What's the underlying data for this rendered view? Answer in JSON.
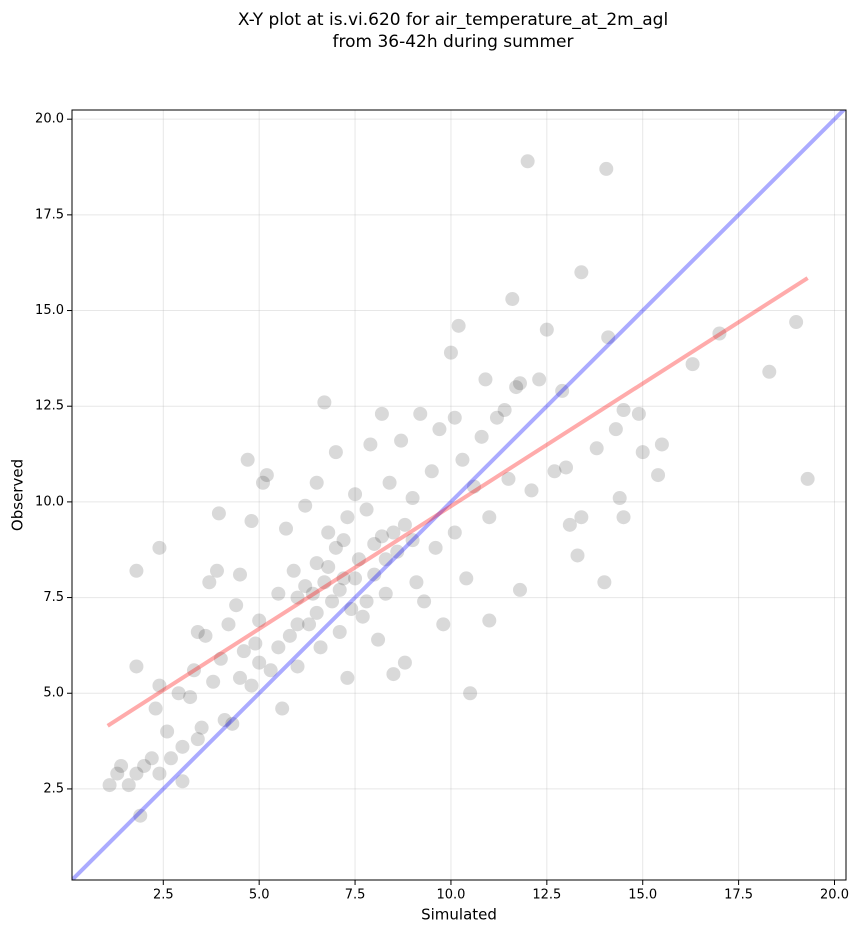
{
  "chart_data": {
    "type": "scatter",
    "title": "X-Y plot at is.vi.620 for air_temperature_at_2m_agl",
    "subtitle": "from 36-42h during summer",
    "x_label": "Simulated",
    "y_label": "Observed",
    "xlim": [
      0.12,
      20.3
    ],
    "ylim": [
      0.12,
      20.24
    ],
    "xticks": [
      2.5,
      {
        "value": 5,
        "label": "5.0"
      },
      7.5,
      {
        "value": 10,
        "label": "10.0"
      },
      12.5,
      {
        "value": 15,
        "label": "15.0"
      },
      17.5,
      {
        "value": 20,
        "label": "20.0"
      }
    ],
    "yticks": [
      2.5,
      {
        "value": 5,
        "label": "5.0"
      },
      7.5,
      {
        "value": 10,
        "label": "10.0"
      },
      12.5,
      {
        "value": 15,
        "label": "15.0"
      },
      17.5,
      {
        "value": 20,
        "label": "20.0"
      }
    ],
    "grid": true,
    "color": "#000000",
    "alpha": 0.15,
    "x": [
      1.1,
      1.3,
      1.4,
      1.6,
      1.8,
      1.8,
      1.8,
      1.9,
      2.0,
      2.2,
      2.3,
      2.4,
      2.4,
      2.4,
      2.6,
      2.7,
      2.9,
      3.0,
      3.0,
      3.2,
      3.3,
      3.4,
      3.5,
      3.4,
      3.6,
      3.7,
      3.8,
      3.9,
      3.95,
      4.0,
      4.1,
      4.2,
      4.3,
      4.4,
      4.5,
      4.5,
      4.6,
      4.7,
      4.8,
      4.8,
      5.0,
      5.1,
      5.2,
      5.3,
      5.5,
      5.6,
      5.7,
      5.8,
      5.9,
      6.0,
      6.0,
      6.2,
      6.3,
      6.4,
      6.5,
      6.5,
      6.6,
      6.7,
      6.7,
      6.8,
      6.9,
      7.0,
      7.0,
      7.1,
      7.2,
      7.3,
      7.3,
      7.4,
      7.5,
      7.6,
      7.7,
      7.8,
      7.9,
      8.0,
      8.1,
      8.2,
      8.2,
      8.3,
      8.4,
      8.5,
      8.6,
      8.7,
      8.8,
      8.8,
      9.0,
      9.1,
      9.2,
      9.3,
      9.5,
      9.6,
      9.7,
      9.8,
      10.0,
      10.1,
      10.1,
      10.2,
      10.3,
      10.4,
      10.5,
      10.6,
      10.8,
      10.9,
      11.0,
      11.0,
      11.2,
      11.4,
      11.5,
      11.6,
      11.7,
      11.8,
      11.8,
      12.0,
      12.1,
      12.3,
      12.5,
      12.7,
      12.9,
      13.0,
      13.1,
      13.3,
      13.4,
      13.4,
      13.8,
      14.0,
      14.05,
      14.1,
      14.3,
      14.4,
      14.5,
      14.5,
      14.9,
      15.0,
      15.4,
      15.5,
      16.3,
      17.0,
      18.3,
      19.0,
      19.3,
      6.2,
      6.8,
      7.1,
      7.5,
      7.8,
      8.0,
      8.5,
      6.0,
      5.5,
      6.5,
      7.2,
      8.3,
      9.0,
      5.0,
      4.9
    ],
    "y": [
      2.6,
      2.9,
      3.1,
      2.6,
      2.9,
      5.7,
      8.2,
      1.8,
      3.1,
      3.3,
      4.6,
      8.8,
      5.2,
      2.9,
      4.0,
      3.3,
      5.0,
      2.7,
      3.6,
      4.9,
      5.6,
      3.8,
      4.1,
      6.6,
      6.5,
      7.9,
      5.3,
      8.2,
      9.7,
      5.9,
      4.3,
      6.8,
      4.2,
      7.3,
      5.4,
      8.1,
      6.1,
      11.1,
      9.5,
      5.2,
      6.9,
      10.5,
      10.7,
      5.6,
      7.6,
      4.6,
      9.3,
      6.5,
      8.2,
      7.5,
      5.7,
      9.9,
      6.8,
      7.6,
      8.4,
      10.5,
      6.2,
      12.6,
      7.9,
      9.2,
      7.4,
      8.8,
      11.3,
      6.6,
      8.0,
      5.4,
      9.6,
      7.2,
      10.2,
      8.5,
      7.0,
      9.8,
      11.5,
      8.1,
      6.4,
      12.3,
      9.1,
      7.6,
      10.5,
      5.5,
      8.7,
      11.6,
      5.8,
      9.4,
      10.1,
      7.9,
      12.3,
      7.4,
      10.8,
      8.8,
      11.9,
      6.8,
      13.9,
      12.2,
      9.2,
      14.6,
      11.1,
      8.0,
      5.0,
      10.4,
      11.7,
      13.2,
      6.9,
      9.6,
      12.2,
      12.4,
      10.6,
      15.3,
      13.0,
      7.7,
      13.1,
      18.9,
      10.3,
      13.2,
      14.5,
      10.8,
      12.9,
      10.9,
      9.4,
      8.6,
      16.0,
      9.6,
      11.4,
      7.9,
      18.7,
      14.3,
      11.9,
      10.1,
      12.4,
      9.6,
      12.3,
      11.3,
      10.7,
      11.5,
      13.6,
      14.4,
      13.4,
      14.7,
      10.6,
      7.8,
      8.3,
      7.7,
      8.0,
      7.4,
      8.9,
      9.2,
      6.8,
      6.2,
      7.1,
      9.0,
      8.5,
      9.0,
      5.8,
      6.3
    ],
    "lines": [
      {
        "color": "#0000ff",
        "x": [
          0.12,
          20.3
        ],
        "y": [
          0.12,
          20.3
        ]
      },
      {
        "color": "#ff0000",
        "x": [
          1.05,
          19.3
        ],
        "y": [
          4.15,
          15.85
        ]
      }
    ]
  }
}
